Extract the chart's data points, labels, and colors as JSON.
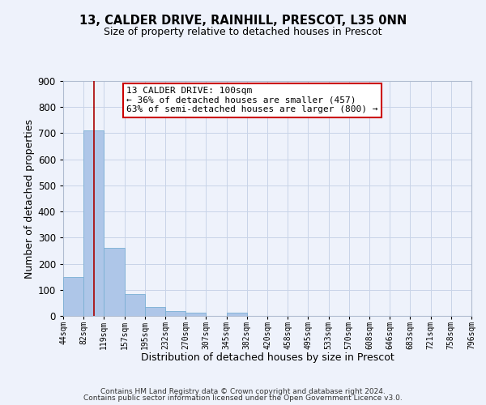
{
  "title": "13, CALDER DRIVE, RAINHILL, PRESCOT, L35 0NN",
  "subtitle": "Size of property relative to detached houses in Prescot",
  "xlabel": "Distribution of detached houses by size in Prescot",
  "ylabel": "Number of detached properties",
  "bar_edges": [
    44,
    82,
    119,
    157,
    195,
    232,
    270,
    307,
    345,
    382,
    420,
    458,
    495,
    533,
    570,
    608,
    646,
    683,
    721,
    758,
    796
  ],
  "bar_heights": [
    150,
    710,
    260,
    85,
    35,
    20,
    13,
    0,
    12,
    0,
    0,
    0,
    0,
    0,
    0,
    0,
    0,
    0,
    0,
    0
  ],
  "bar_color": "#aec6e8",
  "bar_edgecolor": "#7aafd4",
  "property_line_x": 100,
  "property_line_color": "#aa0000",
  "ylim": [
    0,
    900
  ],
  "yticks": [
    0,
    100,
    200,
    300,
    400,
    500,
    600,
    700,
    800,
    900
  ],
  "annotation_text": "13 CALDER DRIVE: 100sqm\n← 36% of detached houses are smaller (457)\n63% of semi-detached houses are larger (800) →",
  "annotation_box_color": "white",
  "annotation_box_edgecolor": "#cc0000",
  "footer_line1": "Contains HM Land Registry data © Crown copyright and database right 2024.",
  "footer_line2": "Contains public sector information licensed under the Open Government Licence v3.0.",
  "background_color": "#eef2fb",
  "grid_color": "#c8d4e8",
  "tick_labels": [
    "44sqm",
    "82sqm",
    "119sqm",
    "157sqm",
    "195sqm",
    "232sqm",
    "270sqm",
    "307sqm",
    "345sqm",
    "382sqm",
    "420sqm",
    "458sqm",
    "495sqm",
    "533sqm",
    "570sqm",
    "608sqm",
    "646sqm",
    "683sqm",
    "721sqm",
    "758sqm",
    "796sqm"
  ]
}
